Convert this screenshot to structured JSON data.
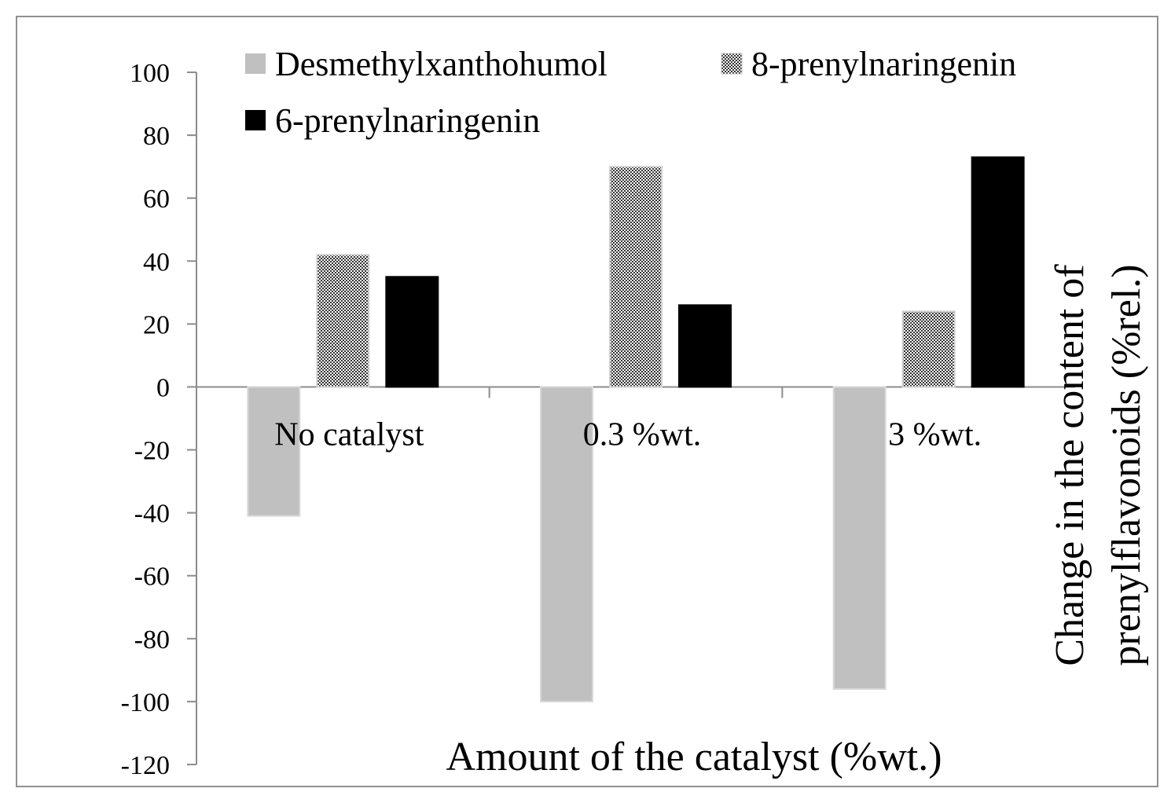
{
  "chart_data": {
    "type": "bar",
    "title": "",
    "categories": [
      "No catalyst",
      "0.3 %wt.",
      "3 %wt."
    ],
    "series": [
      {
        "name": "Desmethylxanthohumol",
        "values": [
          -41,
          -100,
          -96
        ],
        "color": "#c0c0c0",
        "pattern": "solid"
      },
      {
        "name": "8-prenylnaringenin",
        "values": [
          42,
          70,
          24
        ],
        "color": "#808080",
        "pattern": "checker"
      },
      {
        "name": "6-prenylnaringenin",
        "values": [
          35,
          26,
          73
        ],
        "color": "#000000",
        "pattern": "solid"
      }
    ],
    "xlabel": "Amount of the catalyst (%wt.)",
    "ylabel_line1": "Change in the content of",
    "ylabel_line2": "prenylflavonoids (%rel.)",
    "ylim": [
      -120,
      100
    ],
    "yticks": [
      "100",
      "80",
      "60",
      "40",
      "20",
      "0",
      "-20",
      "-40",
      "-60",
      "-80",
      "-100",
      "-120"
    ],
    "grid": false,
    "legend_position": "top"
  }
}
